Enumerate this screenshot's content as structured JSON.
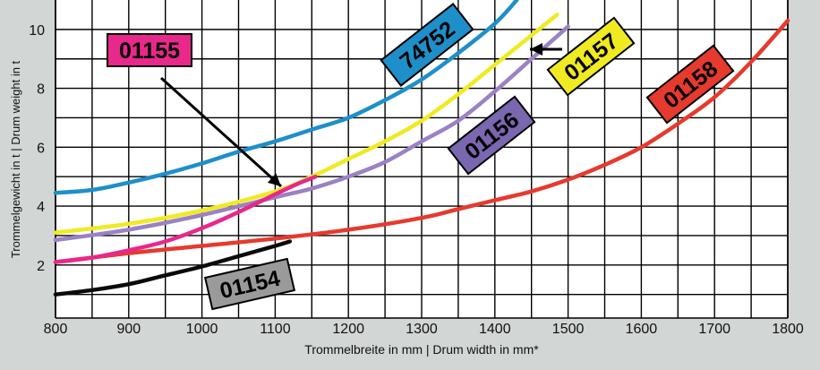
{
  "chart_data": {
    "type": "line",
    "title": "",
    "xlabel": "Trommelbreite in mm | Drum width in mm*",
    "ylabel": "Trommelgewicht in t | Drum weight in t",
    "xlim": [
      800,
      1800
    ],
    "ylim": [
      0.2,
      11
    ],
    "x_ticks": [
      800,
      900,
      1000,
      1100,
      1200,
      1300,
      1400,
      1500,
      1600,
      1700,
      1800
    ],
    "y_ticks": [
      2,
      4,
      6,
      8,
      10
    ],
    "grid": true,
    "series": [
      {
        "name": "74752",
        "color": "#1e8fc9",
        "tag_bg": "#1e8fc9",
        "tag_fg": "#000000",
        "x": [
          800,
          850,
          900,
          950,
          1000,
          1050,
          1100,
          1150,
          1200,
          1250,
          1300,
          1350,
          1400,
          1430
        ],
        "y": [
          4.45,
          4.55,
          4.8,
          5.1,
          5.45,
          5.85,
          6.2,
          6.6,
          7.0,
          7.6,
          8.3,
          9.2,
          10.2,
          11.0
        ]
      },
      {
        "name": "01157",
        "color": "#f0ea22",
        "tag_bg": "#f0ea22",
        "tag_fg": "#000000",
        "x": [
          800,
          900,
          1000,
          1100,
          1150,
          1200,
          1250,
          1300,
          1350,
          1400,
          1450,
          1485
        ],
        "y": [
          3.1,
          3.4,
          3.85,
          4.5,
          5.0,
          5.6,
          6.2,
          6.9,
          7.8,
          8.8,
          9.8,
          10.5
        ]
      },
      {
        "name": "01156",
        "color": "#9a82c4",
        "tag_bg": "#7b66b0",
        "tag_fg": "#000000",
        "x": [
          800,
          900,
          1000,
          1100,
          1150,
          1200,
          1250,
          1300,
          1350,
          1400,
          1450,
          1500
        ],
        "y": [
          2.85,
          3.2,
          3.7,
          4.3,
          4.6,
          5.0,
          5.5,
          6.2,
          6.9,
          7.9,
          9.0,
          10.1
        ]
      },
      {
        "name": "01155",
        "color": "#e8288a",
        "tag_bg": "#e8288a",
        "tag_fg": "#000000",
        "x": [
          800,
          850,
          900,
          950,
          1000,
          1050,
          1100,
          1130,
          1155
        ],
        "y": [
          2.1,
          2.25,
          2.5,
          2.8,
          3.25,
          3.8,
          4.4,
          4.75,
          5.0
        ]
      },
      {
        "name": "01158",
        "color": "#e63a2e",
        "tag_bg": "#e63a2e",
        "tag_fg": "#000000",
        "x": [
          800,
          900,
          1000,
          1100,
          1200,
          1300,
          1350,
          1400,
          1450,
          1500,
          1550,
          1600,
          1650,
          1700,
          1750,
          1800
        ],
        "y": [
          2.1,
          2.4,
          2.65,
          2.9,
          3.2,
          3.6,
          3.9,
          4.2,
          4.5,
          4.9,
          5.4,
          6.0,
          6.8,
          7.7,
          8.9,
          10.3
        ]
      },
      {
        "name": "01154",
        "color": "#0a0a0a",
        "tag_bg": "#9a9a9a",
        "tag_fg": "#000000",
        "x": [
          800,
          850,
          900,
          950,
          1000,
          1050,
          1100,
          1120
        ],
        "y": [
          1.0,
          1.15,
          1.35,
          1.65,
          1.95,
          2.3,
          2.65,
          2.8
        ]
      }
    ]
  }
}
